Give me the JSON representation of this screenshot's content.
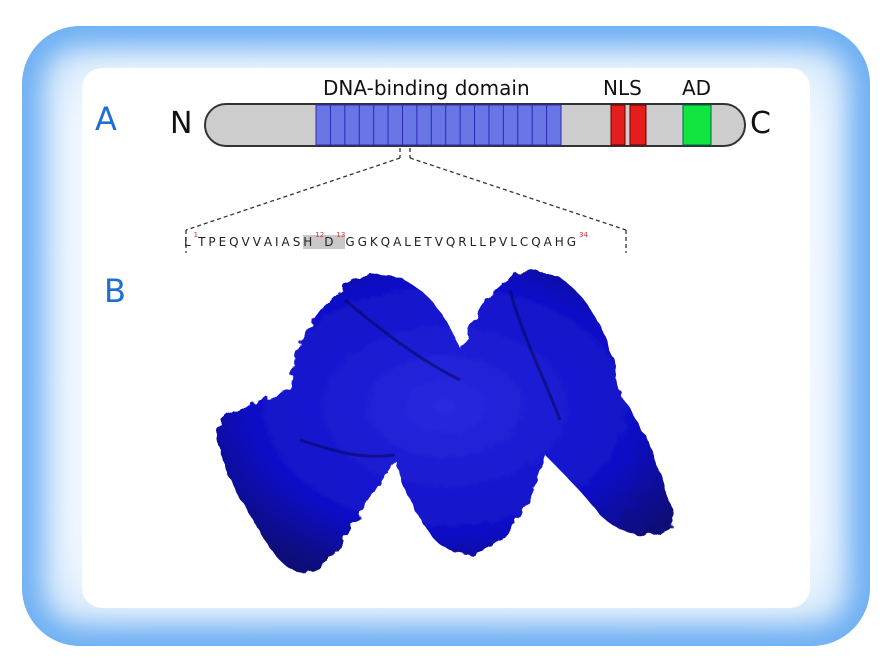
{
  "panels": {
    "a": "A",
    "b": "B"
  },
  "protein": {
    "n_terminus": "N",
    "c_terminus": "C",
    "domains": [
      {
        "name": "DNA-binding domain",
        "color": "#6a76e6"
      },
      {
        "name": "NLS",
        "color": "#e51d1d"
      },
      {
        "name": "AD",
        "color": "#11e640"
      }
    ],
    "backbone_color": "#cdcdcd"
  },
  "repeat": {
    "sequence": [
      "L",
      "T",
      "P",
      "E",
      "Q",
      "V",
      "V",
      "A",
      "I",
      "A",
      "S",
      "H",
      "D",
      "G",
      "G",
      "K",
      "Q",
      "A",
      "L",
      "E",
      "T",
      "V",
      "Q",
      "R",
      "L",
      "L",
      "P",
      "V",
      "L",
      "C",
      "Q",
      "A",
      "H",
      "G"
    ],
    "highlight_positions": [
      12,
      13
    ],
    "position_labels": {
      "1": "1",
      "12": "12",
      "13": "13",
      "34": "34"
    }
  },
  "structure": {
    "color": "#1010c8"
  }
}
